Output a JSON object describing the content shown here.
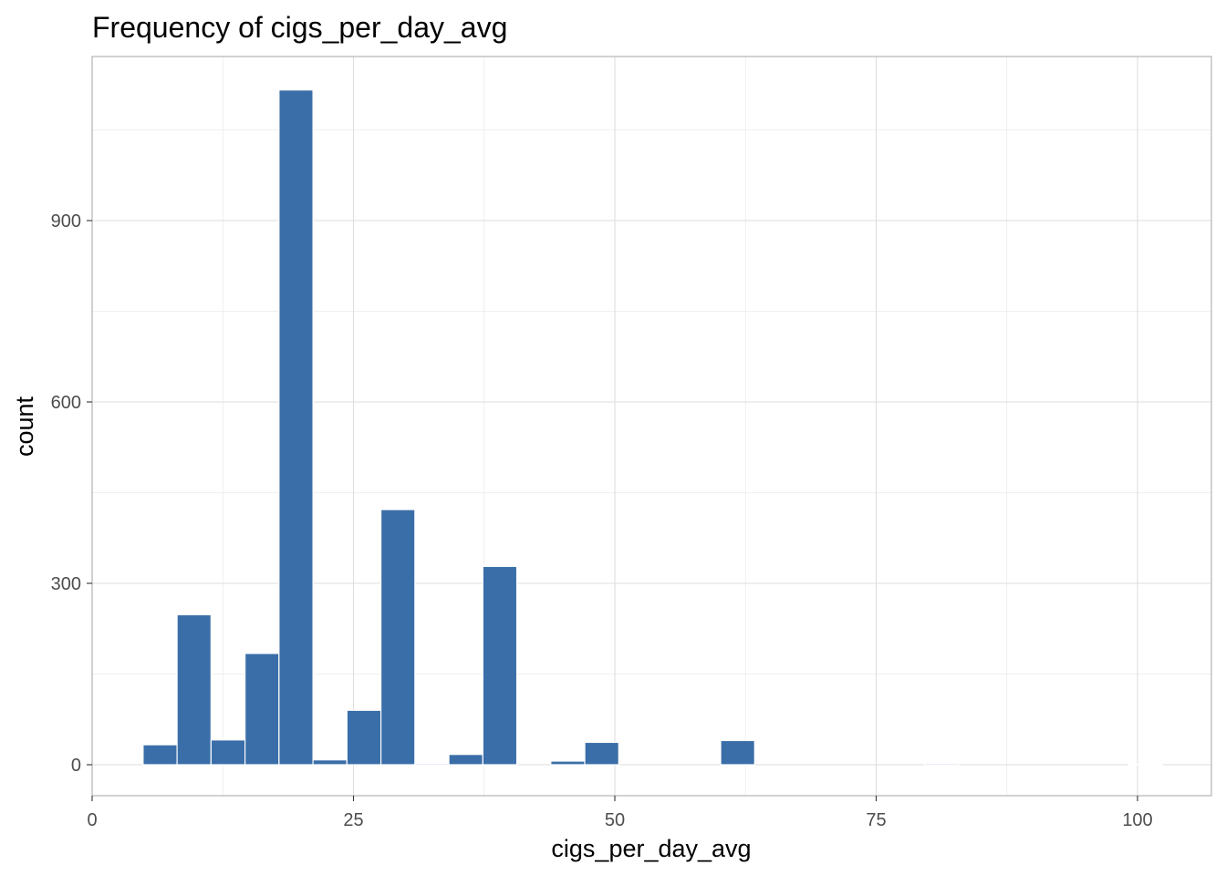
{
  "chart_data": {
    "type": "bar",
    "title": "Frequency of cigs_per_day_avg",
    "xlabel": "cigs_per_day_avg",
    "ylabel": "count",
    "xlim": [
      0,
      107
    ],
    "ylim": [
      -50,
      1170
    ],
    "x_ticks": [
      0,
      25,
      50,
      75,
      100
    ],
    "x_tick_labels": [
      "0",
      "25",
      "50",
      "75",
      "100"
    ],
    "y_ticks": [
      0,
      300,
      600,
      900
    ],
    "y_tick_labels": [
      "0",
      "300",
      "600",
      "900"
    ],
    "bin_width": 3.25,
    "bar_color": "#3a6ea8",
    "grid": true,
    "bins": [
      {
        "x": 6.5,
        "count": 33
      },
      {
        "x": 9.75,
        "count": 248
      },
      {
        "x": 13.0,
        "count": 41
      },
      {
        "x": 16.25,
        "count": 184
      },
      {
        "x": 19.5,
        "count": 1116
      },
      {
        "x": 22.75,
        "count": 8
      },
      {
        "x": 26.0,
        "count": 90
      },
      {
        "x": 29.25,
        "count": 422
      },
      {
        "x": 32.5,
        "count": 2
      },
      {
        "x": 35.75,
        "count": 17
      },
      {
        "x": 39.0,
        "count": 328
      },
      {
        "x": 45.5,
        "count": 6
      },
      {
        "x": 48.75,
        "count": 37
      },
      {
        "x": 61.75,
        "count": 40
      },
      {
        "x": 81.25,
        "count": 2
      },
      {
        "x": 100.75,
        "count": 1
      }
    ]
  }
}
